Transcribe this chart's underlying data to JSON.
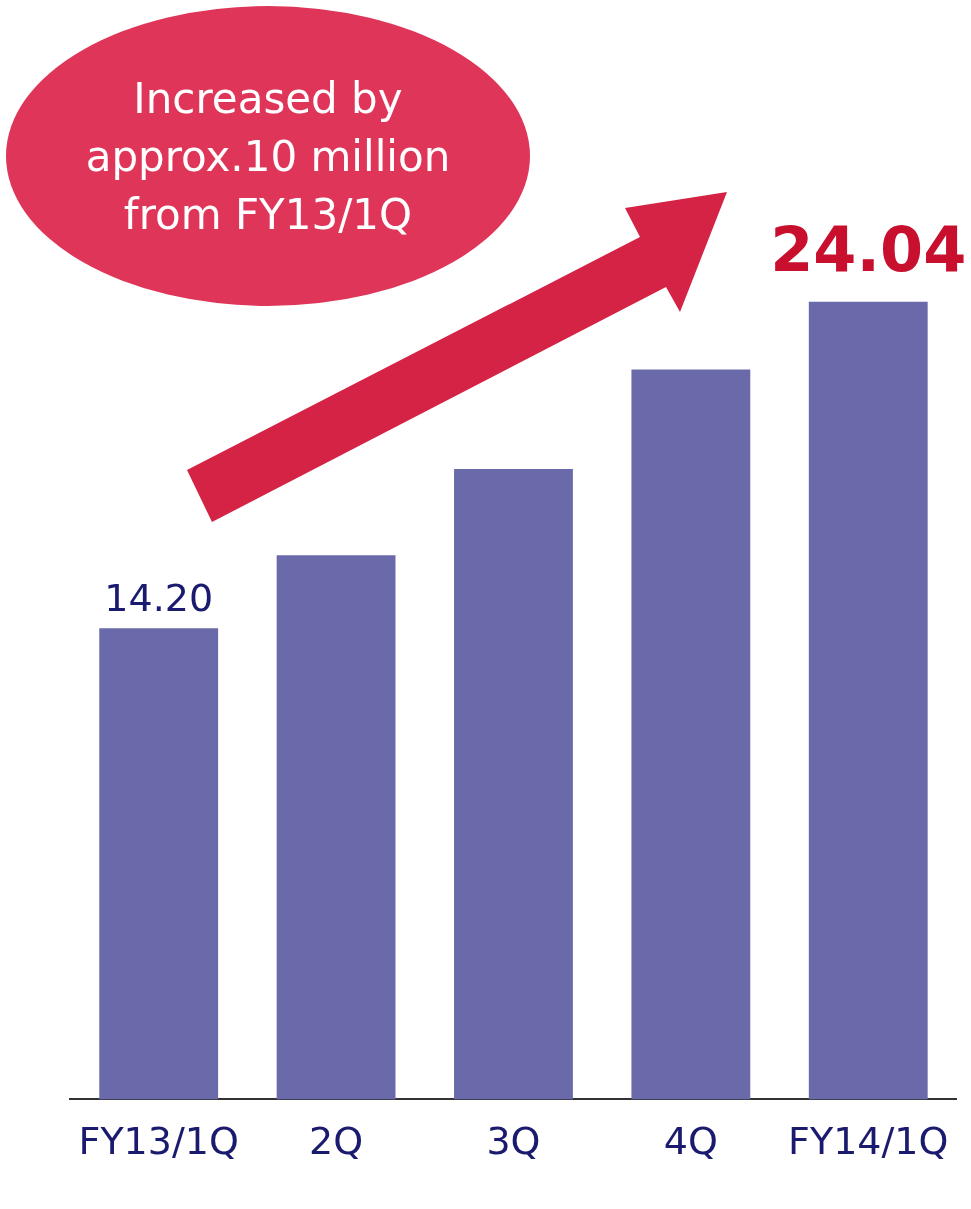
{
  "chart_data": {
    "type": "bar",
    "categories": [
      "FY13/1Q",
      "2Q",
      "3Q",
      "4Q",
      "FY14/1Q"
    ],
    "values": [
      14.2,
      16.4,
      19.0,
      22.0,
      24.04
    ],
    "value_labels": [
      "14.20",
      null,
      null,
      null,
      "24.04"
    ],
    "color": "#6a6aaa",
    "grid": false,
    "legend": false,
    "annotations": [
      "Increased by approx.10 million from FY13/1Q"
    ]
  }
}
